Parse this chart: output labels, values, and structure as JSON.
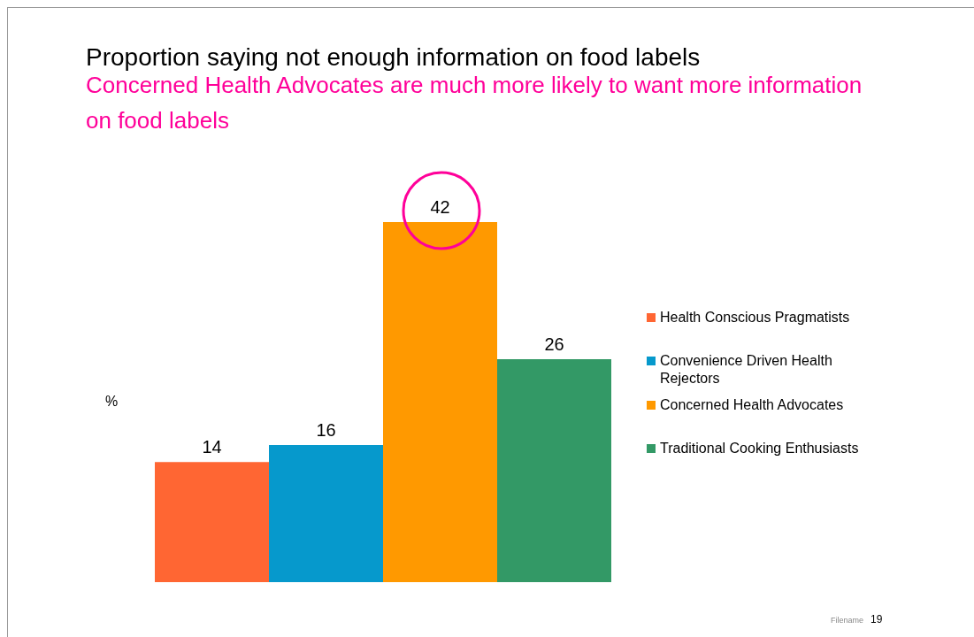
{
  "chart_data": {
    "type": "bar",
    "title": "Proportion saying not enough information on food labels",
    "subtitle": "Concerned Health Advocates are much more likely to want more information on food labels",
    "ylabel": "%",
    "categories": [
      null
    ],
    "series": [
      {
        "name": "Health Conscious Pragmatists",
        "color": "#ff6633",
        "values": [
          14
        ]
      },
      {
        "name": "Convenience Driven Health Rejectors",
        "color": "#0699cc",
        "values": [
          16
        ]
      },
      {
        "name": "Concerned Health Advocates",
        "color": "#ff9900",
        "values": [
          42
        ]
      },
      {
        "name": "Traditional Cooking Enthusiasts",
        "color": "#339966",
        "values": [
          26
        ]
      }
    ],
    "data_labels": true,
    "legend": "right",
    "annotations": [
      "Filename",
      "19"
    ]
  }
}
